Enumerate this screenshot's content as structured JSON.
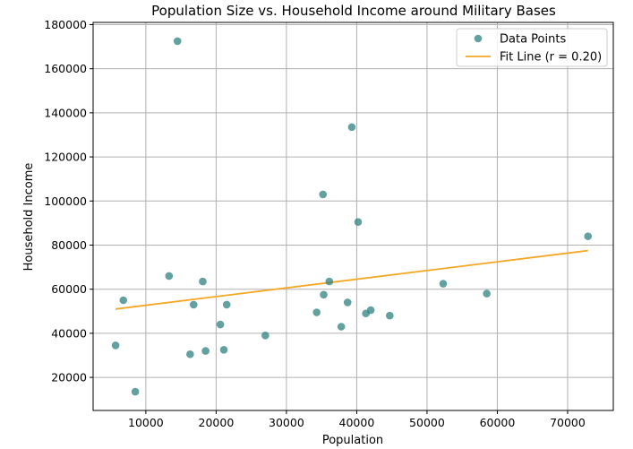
{
  "chart_data": {
    "type": "scatter",
    "title": "Population Size vs. Household Income around Military Bases",
    "xlabel": "Population",
    "ylabel": "Household Income",
    "xlim": [
      2500,
      76500
    ],
    "ylim": [
      5000,
      181000
    ],
    "xticks": [
      10000,
      20000,
      30000,
      40000,
      50000,
      60000,
      70000
    ],
    "yticks": [
      20000,
      40000,
      60000,
      80000,
      100000,
      120000,
      140000,
      160000,
      180000
    ],
    "grid": true,
    "legend_position": "top-right",
    "series": [
      {
        "name": "Data Points",
        "kind": "scatter",
        "color": "#2f8080",
        "points": [
          [
            5700,
            34500
          ],
          [
            6800,
            55000
          ],
          [
            8500,
            13500
          ],
          [
            13300,
            66000
          ],
          [
            14500,
            172500
          ],
          [
            16300,
            30500
          ],
          [
            16800,
            53000
          ],
          [
            18100,
            63500
          ],
          [
            18500,
            32000
          ],
          [
            20600,
            44000
          ],
          [
            21100,
            32500
          ],
          [
            21500,
            53000
          ],
          [
            27000,
            39000
          ],
          [
            34300,
            49500
          ],
          [
            35200,
            103000
          ],
          [
            35300,
            57500
          ],
          [
            36100,
            63500
          ],
          [
            37800,
            43000
          ],
          [
            38700,
            54000
          ],
          [
            39300,
            133500
          ],
          [
            40200,
            90500
          ],
          [
            41300,
            49000
          ],
          [
            42000,
            50500
          ],
          [
            44700,
            48000
          ],
          [
            52300,
            62500
          ],
          [
            58500,
            58000
          ],
          [
            72900,
            84000
          ]
        ]
      },
      {
        "name": "Fit Line (r = 0.20)",
        "kind": "line",
        "color": "#f5a623",
        "points": [
          [
            5700,
            51000
          ],
          [
            72900,
            77500
          ]
        ]
      }
    ]
  }
}
